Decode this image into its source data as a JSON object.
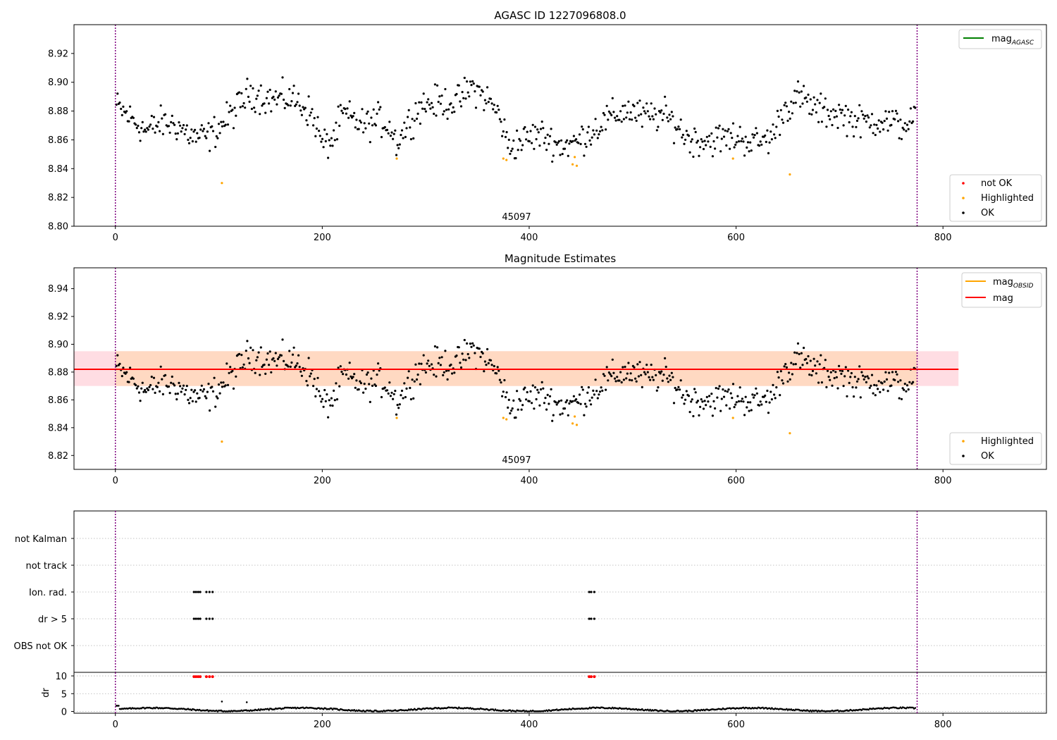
{
  "figure": {
    "background": "#ffffff"
  },
  "colors": {
    "ok": "#000000",
    "highlighted": "#ffa500",
    "not_ok": "#ff0000",
    "mag_agasc": "#008000",
    "mag_obsid": "#ffa500",
    "mag": "#ff0000",
    "band_obsid": "#ffd9c2",
    "band_mag": "#ffdde3",
    "obs_boundary": "#800080",
    "grid": "#b0b0b0"
  },
  "chart_data": [
    {
      "id": "agasc-panel",
      "type": "scatter",
      "title": "AGASC ID 1227096808.0",
      "xlim": [
        -40,
        900
      ],
      "ylim": [
        8.8,
        8.94
      ],
      "xticks": [
        "0",
        "200",
        "400",
        "600",
        "800"
      ],
      "yticks": [
        "8.80",
        "8.82",
        "8.84",
        "8.86",
        "8.88",
        "8.90",
        "8.92"
      ],
      "obs_boundaries": [
        0,
        775
      ],
      "obsid_label": {
        "text": "45097",
        "x": 388
      },
      "legend_lines": [
        {
          "label": "mag",
          "sub": "AGASC",
          "color": "#008000"
        }
      ],
      "legend_markers": [
        {
          "label": "not OK",
          "color": "#ff0000"
        },
        {
          "label": "Highlighted",
          "color": "#ffa500"
        },
        {
          "label": "OK",
          "color": "#000000"
        }
      ],
      "highlighted_points": [
        [
          103,
          8.83
        ],
        [
          272,
          8.847
        ],
        [
          375,
          8.847
        ],
        [
          378,
          8.846
        ],
        [
          442,
          8.843
        ],
        [
          446,
          8.842
        ],
        [
          444,
          8.848
        ],
        [
          597,
          8.847
        ],
        [
          652,
          8.836
        ]
      ]
    },
    {
      "id": "estimates-panel",
      "type": "scatter",
      "title": "Magnitude Estimates",
      "xlim": [
        -40,
        900
      ],
      "ylim": [
        8.81,
        8.955
      ],
      "xticks": [
        "0",
        "200",
        "400",
        "600",
        "800"
      ],
      "yticks": [
        "8.82",
        "8.84",
        "8.86",
        "8.88",
        "8.90",
        "8.92",
        "8.94"
      ],
      "obs_boundaries": [
        0,
        775
      ],
      "obsid_label": {
        "text": "45097",
        "x": 388
      },
      "mag": 8.882,
      "mag_band": [
        8.87,
        8.895
      ],
      "band_xrange": [
        -40,
        815
      ],
      "legend_lines": [
        {
          "label": "mag",
          "sub": "OBSID",
          "color": "#ffa500"
        },
        {
          "label": "mag",
          "sub": "",
          "color": "#ff0000"
        }
      ],
      "legend_markers": [
        {
          "label": "Highlighted",
          "color": "#ffa500"
        },
        {
          "label": "OK",
          "color": "#000000"
        }
      ],
      "highlighted_points": [
        [
          103,
          8.83
        ],
        [
          272,
          8.847
        ],
        [
          375,
          8.847
        ],
        [
          378,
          8.846
        ],
        [
          442,
          8.843
        ],
        [
          446,
          8.842
        ],
        [
          444,
          8.848
        ],
        [
          597,
          8.847
        ],
        [
          652,
          8.836
        ]
      ]
    },
    {
      "id": "flags-panel",
      "type": "scatter",
      "xlim": [
        -40,
        900
      ],
      "categories": [
        "not Kalman",
        "not track",
        "Ion. rad.",
        "dr > 5",
        "OBS not OK"
      ],
      "flagged": {
        "Ion. rad.": [
          76,
          78,
          80,
          82,
          88,
          91,
          94,
          458,
          460,
          463
        ],
        "dr > 5": [
          76,
          78,
          80,
          82,
          88,
          91,
          94,
          458,
          460,
          463
        ]
      },
      "obs_boundaries": [
        0,
        775
      ]
    },
    {
      "id": "dr-panel",
      "type": "scatter",
      "xlim": [
        -40,
        900
      ],
      "ylim": [
        -0.5,
        11
      ],
      "ylabel": "dr",
      "yticks": [
        "0",
        "5",
        "10"
      ],
      "xticks": [
        "0",
        "200",
        "400",
        "600",
        "800"
      ],
      "obs_boundaries": [
        0,
        775
      ],
      "high_dr_points": [
        [
          76,
          9.8
        ],
        [
          78,
          9.8
        ],
        [
          80,
          9.8
        ],
        [
          82,
          9.8
        ],
        [
          88,
          9.8
        ],
        [
          91,
          9.8
        ],
        [
          94,
          9.8
        ],
        [
          458,
          9.8
        ],
        [
          460,
          9.8
        ],
        [
          463,
          9.8
        ]
      ],
      "outlier_points": [
        [
          103,
          2.8
        ],
        [
          127,
          2.6
        ]
      ]
    }
  ]
}
